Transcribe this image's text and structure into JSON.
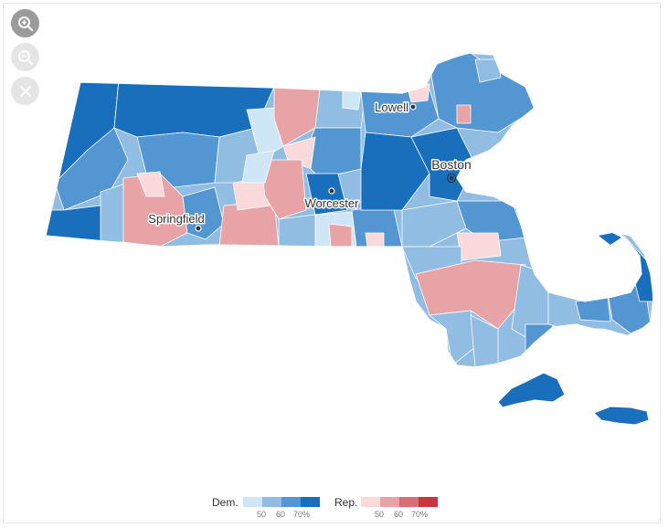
{
  "controls": [
    {
      "name": "zoom-in-button",
      "icon": "zoom-in-icon",
      "state": "active"
    },
    {
      "name": "zoom-out-button",
      "icon": "zoom-out-icon",
      "state": "disabled"
    },
    {
      "name": "reset-button",
      "icon": "close-icon",
      "state": "disabled"
    }
  ],
  "cities": [
    {
      "id": "lowell",
      "label": "Lowell",
      "marker": "dot"
    },
    {
      "id": "boston",
      "label": "Boston",
      "marker": "ring"
    },
    {
      "id": "worcester",
      "label": "Worcester",
      "marker": "dot"
    },
    {
      "id": "springfield",
      "label": "Springfield",
      "marker": "dot"
    }
  ],
  "legend": {
    "dem": {
      "title": "Dem.",
      "colors": [
        "#cfe6f7",
        "#91bde3",
        "#5496d2",
        "#1a6fbd"
      ],
      "ticks": [
        "50",
        "60",
        "70%"
      ]
    },
    "rep": {
      "title": "Rep.",
      "colors": [
        "#f9d9da",
        "#e8a3a7",
        "#d76f75",
        "#c8343f"
      ],
      "ticks": [
        "50",
        "60",
        "70%"
      ]
    }
  }
}
